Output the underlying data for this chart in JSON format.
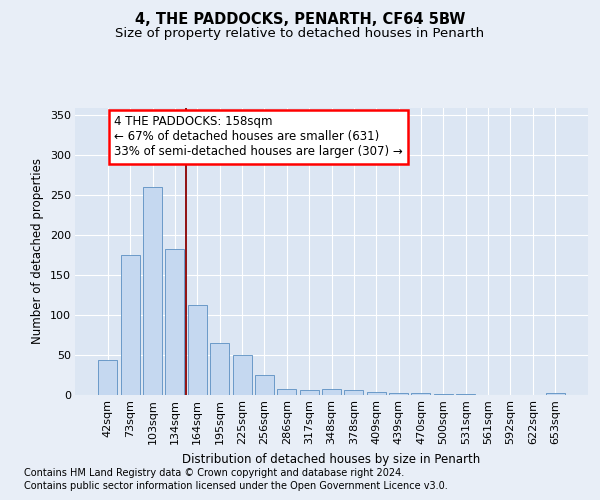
{
  "title1": "4, THE PADDOCKS, PENARTH, CF64 5BW",
  "title2": "Size of property relative to detached houses in Penarth",
  "xlabel": "Distribution of detached houses by size in Penarth",
  "ylabel": "Number of detached properties",
  "categories": [
    "42sqm",
    "73sqm",
    "103sqm",
    "134sqm",
    "164sqm",
    "195sqm",
    "225sqm",
    "256sqm",
    "286sqm",
    "317sqm",
    "348sqm",
    "378sqm",
    "409sqm",
    "439sqm",
    "470sqm",
    "500sqm",
    "531sqm",
    "561sqm",
    "592sqm",
    "622sqm",
    "653sqm"
  ],
  "values": [
    44,
    175,
    260,
    183,
    113,
    65,
    50,
    25,
    8,
    6,
    8,
    6,
    4,
    3,
    2,
    1,
    1,
    0,
    0,
    0,
    2
  ],
  "bar_color": "#c5d8f0",
  "bar_edge_color": "#5a8fc2",
  "annotation_line1": "4 THE PADDOCKS: 158sqm",
  "annotation_line2": "← 67% of detached houses are smaller (631)",
  "annotation_line3": "33% of semi-detached houses are larger (307) →",
  "annotation_box_color": "white",
  "annotation_box_edge": "red",
  "vline_color": "#8b0000",
  "footer1": "Contains HM Land Registry data © Crown copyright and database right 2024.",
  "footer2": "Contains public sector information licensed under the Open Government Licence v3.0.",
  "background_color": "#e8eef7",
  "plot_background": "#dce6f3",
  "grid_color": "white",
  "ylim": [
    0,
    360
  ],
  "yticks": [
    0,
    50,
    100,
    150,
    200,
    250,
    300,
    350
  ],
  "vline_xindex": 3.5,
  "title1_fontsize": 10.5,
  "title2_fontsize": 9.5,
  "xlabel_fontsize": 8.5,
  "ylabel_fontsize": 8.5,
  "tick_fontsize": 8,
  "annot_fontsize": 8.5,
  "footer_fontsize": 7
}
